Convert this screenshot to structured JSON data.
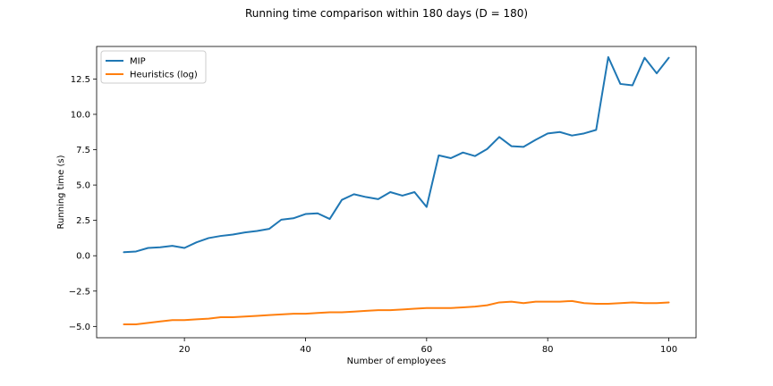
{
  "chart_data": {
    "type": "line",
    "title": "Running time comparison within 180 days (D = 180)",
    "xlabel": "Number of employees",
    "ylabel": "Running time (s)",
    "xlim": [
      5.5,
      104.5
    ],
    "ylim": [
      -5.8,
      14.8
    ],
    "xticks": [
      20,
      40,
      60,
      80,
      100
    ],
    "xtick_labels": [
      "20",
      "40",
      "60",
      "80",
      "100"
    ],
    "yticks": [
      -5.0,
      -2.5,
      0.0,
      2.5,
      5.0,
      7.5,
      10.0,
      12.5
    ],
    "ytick_labels": [
      "−5.0",
      "−2.5",
      "0.0",
      "2.5",
      "5.0",
      "7.5",
      "10.0",
      "12.5"
    ],
    "grid": false,
    "legend_position": "upper-left",
    "series": [
      {
        "name": "MIP",
        "color": "#1f77b4",
        "x": [
          10,
          12,
          14,
          16,
          18,
          20,
          22,
          24,
          26,
          28,
          30,
          32,
          34,
          36,
          38,
          40,
          42,
          44,
          46,
          48,
          50,
          52,
          54,
          56,
          58,
          60,
          62,
          64,
          66,
          68,
          70,
          72,
          74,
          76,
          78,
          80,
          82,
          84,
          86,
          88,
          90,
          92,
          94,
          96,
          98,
          100
        ],
        "y": [
          0.25,
          0.3,
          0.55,
          0.6,
          0.7,
          0.55,
          0.95,
          1.25,
          1.4,
          1.5,
          1.65,
          1.75,
          1.9,
          2.55,
          2.65,
          2.95,
          3.0,
          2.6,
          3.95,
          4.35,
          4.15,
          4.0,
          4.5,
          4.25,
          4.5,
          3.45,
          7.1,
          6.9,
          7.3,
          7.05,
          7.55,
          8.4,
          7.75,
          7.7,
          8.2,
          8.65,
          8.75,
          8.5,
          8.65,
          8.9,
          14.05,
          12.15,
          12.05,
          14.0,
          12.9,
          14.0
        ]
      },
      {
        "name": "Heuristics (log)",
        "color": "#ff7f0e",
        "x": [
          10,
          12,
          14,
          16,
          18,
          20,
          22,
          24,
          26,
          28,
          30,
          32,
          34,
          36,
          38,
          40,
          42,
          44,
          46,
          48,
          50,
          52,
          54,
          56,
          58,
          60,
          62,
          64,
          66,
          68,
          70,
          72,
          74,
          76,
          78,
          80,
          82,
          84,
          86,
          88,
          90,
          92,
          94,
          96,
          98,
          100
        ],
        "y": [
          -4.85,
          -4.85,
          -4.75,
          -4.65,
          -4.55,
          -4.55,
          -4.5,
          -4.45,
          -4.35,
          -4.35,
          -4.3,
          -4.25,
          -4.2,
          -4.15,
          -4.1,
          -4.1,
          -4.05,
          -4.0,
          -4.0,
          -3.95,
          -3.9,
          -3.85,
          -3.85,
          -3.8,
          -3.75,
          -3.7,
          -3.7,
          -3.7,
          -3.65,
          -3.6,
          -3.5,
          -3.3,
          -3.25,
          -3.35,
          -3.25,
          -3.25,
          -3.25,
          -3.2,
          -3.35,
          -3.4,
          -3.4,
          -3.35,
          -3.3,
          -3.35,
          -3.35,
          -3.3
        ]
      }
    ]
  }
}
